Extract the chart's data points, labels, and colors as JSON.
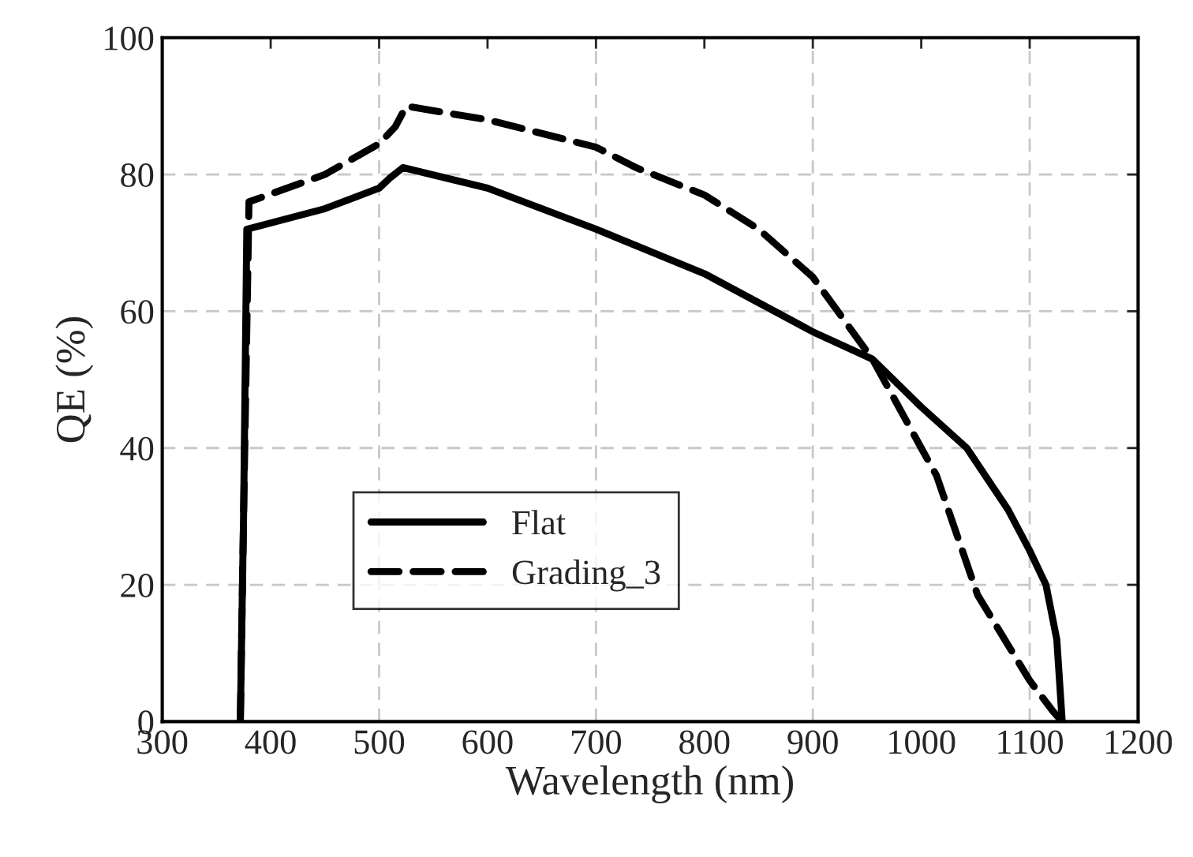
{
  "chart_data": {
    "type": "line",
    "xlabel": "Wavelength (nm)",
    "ylabel": "QE (%)",
    "xlim": [
      300,
      1200
    ],
    "xticks": [
      300,
      400,
      500,
      600,
      700,
      800,
      900,
      1000,
      1100,
      1200
    ],
    "ylim": [
      0,
      100
    ],
    "yticks": [
      0,
      20,
      40,
      60,
      80,
      100
    ],
    "grid": true,
    "legend": "bottom left",
    "marker": "none",
    "series": [
      {
        "name": "Flat",
        "color": "#000000",
        "line_style": "solid",
        "x": [
          372,
          375,
          378,
          450,
          500,
          510,
          522,
          600,
          700,
          800,
          900,
          955,
          1000,
          1042,
          1080,
          1100,
          1115,
          1125,
          1130
        ],
        "values": [
          0,
          30,
          72,
          75,
          78,
          79.5,
          81,
          78,
          72,
          65.5,
          57,
          53,
          46,
          40,
          31,
          25,
          20,
          12,
          0
        ]
      },
      {
        "name": "Grading_3",
        "color": "#000000",
        "line_style": "dashed",
        "x": [
          372,
          375,
          380,
          450,
          500,
          515,
          525,
          600,
          700,
          737,
          800,
          820,
          850,
          900,
          955,
          1000,
          1014,
          1052,
          1100,
          1121,
          1130
        ],
        "values": [
          0,
          30,
          76,
          80,
          84.5,
          87,
          90,
          88,
          84,
          81,
          77,
          75,
          72,
          65,
          53,
          40,
          36,
          18.5,
          6,
          1.6,
          0
        ]
      }
    ]
  }
}
